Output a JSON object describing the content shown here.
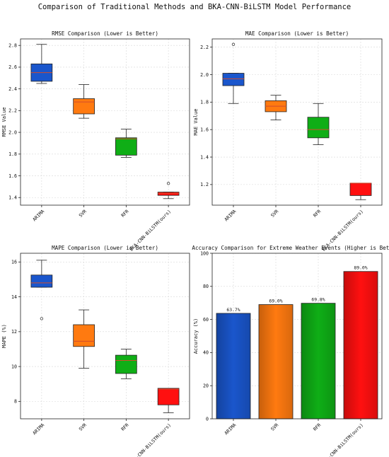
{
  "figure_title": "Comparison of Traditional Methods and BKA-CNN-BiLSTM Model Performance",
  "colors": {
    "ARIMA": "#1a56cc",
    "SVR": "#ff7a10",
    "RFR": "#0fae16",
    "BKA": "#ff1010",
    "median": "#d04c2c"
  },
  "chart_data": [
    {
      "type": "box",
      "title": "RMSE Comparison (Lower is Better)",
      "ylabel": "RMSE Value",
      "xlabel": "",
      "ylim": [
        1.33,
        2.86
      ],
      "yticks": [
        1.4,
        1.6,
        1.8,
        2.0,
        2.2,
        2.4,
        2.6,
        2.8
      ],
      "categories": [
        "ARIMA",
        "SVR",
        "RFR",
        "BKA-CNN-BiLSTM(ours)"
      ],
      "boxes": [
        {
          "whislo": 2.45,
          "q1": 2.47,
          "med": 2.55,
          "q3": 2.63,
          "whishi": 2.81,
          "fliers": []
        },
        {
          "whislo": 2.13,
          "q1": 2.17,
          "med": 2.28,
          "q3": 2.31,
          "whishi": 2.44,
          "fliers": []
        },
        {
          "whislo": 1.77,
          "q1": 1.79,
          "med": 1.94,
          "q3": 1.95,
          "whishi": 2.03,
          "fliers": []
        },
        {
          "whislo": 1.39,
          "q1": 1.42,
          "med": 1.44,
          "q3": 1.45,
          "whishi": 1.45,
          "fliers": [
            1.53
          ]
        }
      ],
      "grid": true
    },
    {
      "type": "box",
      "title": "MAE Comparison (Lower is Better)",
      "ylabel": "MAE Value",
      "xlabel": "",
      "ylim": [
        1.05,
        2.26
      ],
      "yticks": [
        1.2,
        1.4,
        1.6,
        1.8,
        2.0,
        2.2
      ],
      "categories": [
        "ARIMA",
        "SVR",
        "RFR",
        "BKA-CNN-BiLSTM(ours)"
      ],
      "boxes": [
        {
          "whislo": 1.79,
          "q1": 1.92,
          "med": 1.97,
          "q3": 2.01,
          "whishi": 2.01,
          "fliers": [
            2.22
          ]
        },
        {
          "whislo": 1.67,
          "q1": 1.73,
          "med": 1.77,
          "q3": 1.81,
          "whishi": 1.85,
          "fliers": []
        },
        {
          "whislo": 1.49,
          "q1": 1.54,
          "med": 1.6,
          "q3": 1.69,
          "whishi": 1.79,
          "fliers": []
        },
        {
          "whislo": 1.09,
          "q1": 1.12,
          "med": 1.21,
          "q3": 1.21,
          "whishi": 1.21,
          "fliers": []
        }
      ],
      "grid": true
    },
    {
      "type": "box",
      "title": "MAPE Comparison (Lower is Better)",
      "ylabel": "MAPE (%)",
      "xlabel": "",
      "ylim": [
        7.0,
        16.5
      ],
      "yticks": [
        8,
        10,
        12,
        14,
        16
      ],
      "categories": [
        "ARIMA",
        "SVR",
        "RFR",
        "BKA-CNN-BiLSTM(ours)"
      ],
      "boxes": [
        {
          "whislo": 14.55,
          "q1": 14.55,
          "med": 14.8,
          "q3": 15.25,
          "whishi": 16.1,
          "fliers": [
            12.75
          ]
        },
        {
          "whislo": 9.9,
          "q1": 11.15,
          "med": 11.45,
          "q3": 12.4,
          "whishi": 13.25,
          "fliers": []
        },
        {
          "whislo": 9.3,
          "q1": 9.6,
          "med": 10.35,
          "q3": 10.65,
          "whishi": 11.0,
          "fliers": []
        },
        {
          "whislo": 7.35,
          "q1": 7.8,
          "med": 8.7,
          "q3": 8.75,
          "whishi": 8.75,
          "fliers": []
        }
      ],
      "grid": true
    },
    {
      "type": "bar",
      "title": "Accuracy Comparison for Extreme Weather Events (Higher is Better)",
      "ylabel": "Accuracy (%)",
      "xlabel": "",
      "ylim": [
        0,
        100
      ],
      "yticks": [
        0,
        20,
        40,
        60,
        80,
        100
      ],
      "categories": [
        "ARIMA",
        "SVR",
        "RFR",
        "BKA-CNN-BiLSTM(ours)"
      ],
      "values": [
        63.7,
        69.0,
        69.8,
        89.0
      ],
      "value_labels": [
        "63.7%",
        "69.0%",
        "69.8%",
        "89.0%"
      ],
      "grid": true
    }
  ]
}
